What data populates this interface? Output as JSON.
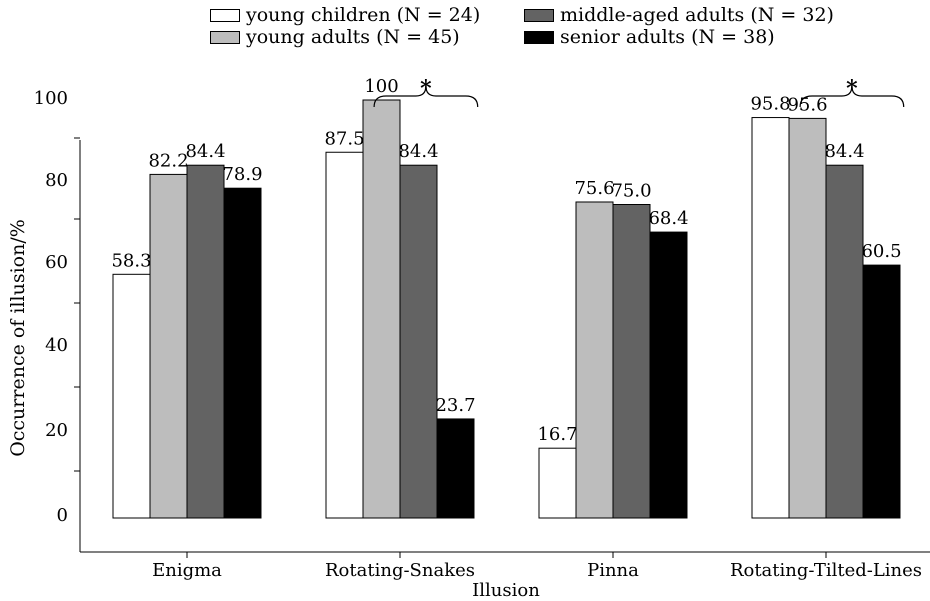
{
  "chart_data": {
    "type": "bar",
    "categories": [
      "Enigma",
      "Rotating-Snakes",
      "Pinna",
      "Rotating-Tilted-Lines"
    ],
    "series": [
      {
        "name": "young children (N = 24)",
        "color": "#ffffff",
        "values": [
          58.3,
          87.5,
          16.7,
          95.8
        ],
        "labels": [
          "58.3",
          "87.5",
          "16.7",
          "95.8"
        ]
      },
      {
        "name": "young adults (N = 45)",
        "color": "#bdbdbd",
        "values": [
          82.2,
          100,
          75.6,
          95.6
        ],
        "labels": [
          "82.2",
          "100",
          "75.6",
          "95.6"
        ]
      },
      {
        "name": "middle-aged adults (N = 32)",
        "color": "#636363",
        "values": [
          84.4,
          84.4,
          75.0,
          84.4
        ],
        "labels": [
          "84.4",
          "84.4",
          "75.0",
          "84.4"
        ]
      },
      {
        "name": "senior adults (N = 38)",
        "color": "#000000",
        "values": [
          78.9,
          23.7,
          68.4,
          60.5
        ],
        "labels": [
          "78.9",
          "23.7",
          "68.4",
          "60.5"
        ]
      }
    ],
    "xlabel": "Illusion",
    "ylabel": "Occurrence of illusion/%",
    "y_ticks": [
      "0",
      "20",
      "40",
      "60",
      "80",
      "100"
    ],
    "ylim": [
      0,
      100
    ],
    "legend_position": "top",
    "significance": [
      {
        "category": "Rotating-Snakes",
        "marker": "*"
      },
      {
        "category": "Rotating-Tilted-Lines",
        "marker": "*"
      }
    ]
  }
}
